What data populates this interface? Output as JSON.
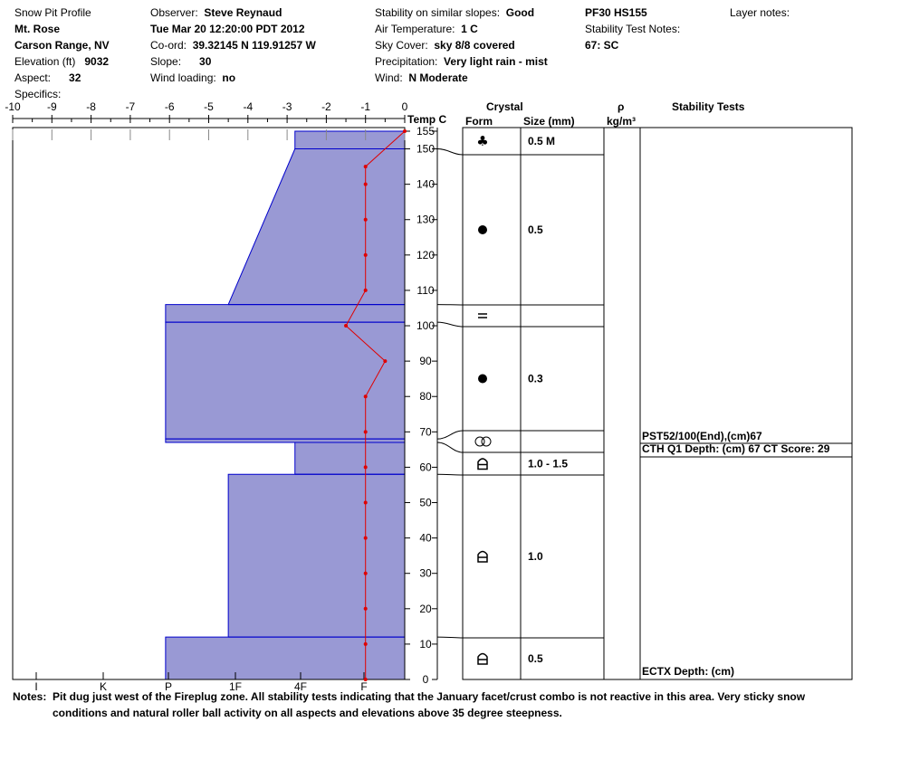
{
  "header": {
    "title": "Snow Pit Profile",
    "location": "Mt. Rose",
    "region": "Carson Range, NV",
    "elevation_label": "Elevation (ft)",
    "elevation_value": "9032",
    "aspect_label": "Aspect:",
    "aspect_value": "32",
    "specifics_label": "Specifics:",
    "observer_label": "Observer:",
    "observer_value": "Steve Reynaud",
    "datetime": "Tue Mar 20 12:20:00 PDT 2012",
    "coord_label": "Co-ord:",
    "coord_value": "39.32145 N 119.91257 W",
    "slope_label": "Slope:",
    "slope_value": "30",
    "wind_loading_label": "Wind loading:",
    "wind_loading_value": "no",
    "stability_label": "Stability on similar slopes:",
    "stability_value": "Good",
    "air_temp_label": "Air Temperature:",
    "air_temp_value": "1 C",
    "sky_label": "Sky Cover:",
    "sky_value": "sky 8/8 covered",
    "precip_label": "Precipitation:",
    "precip_value": "Very light rain - mist",
    "wind_label": "Wind:",
    "wind_value": "N Moderate",
    "pf_hs": "PF30 HS155",
    "stability_notes_label": "Stability Test Notes:",
    "stability_notes_value": "67: SC",
    "layer_notes_label": "Layer notes:"
  },
  "columns": {
    "temp": "Temp C",
    "crystal": "Crystal",
    "form": "Form",
    "size": "Size (mm)",
    "rho": "ρ",
    "density_unit": "kg/m³",
    "stability_tests": "Stability Tests"
  },
  "chart_data": {
    "type": "snow-profile",
    "temp_axis": {
      "ticks": [
        "-10",
        "-9",
        "-8",
        "-7",
        "-6",
        "-5",
        "-4",
        "-3",
        "-2",
        "-1",
        "0"
      ],
      "range": [
        -10,
        0
      ]
    },
    "depth_axis": {
      "ticks": [
        "0",
        "10",
        "20",
        "30",
        "40",
        "50",
        "60",
        "70",
        "80",
        "90",
        "100",
        "110",
        "120",
        "130",
        "140",
        "150",
        "155"
      ],
      "range": [
        0,
        155
      ]
    },
    "hardness_axis": {
      "ticks": [
        "I",
        "K",
        "P",
        "1F",
        "4F",
        "F"
      ]
    },
    "hardness_profile": [
      {
        "bottom": 150,
        "top": 155,
        "hardness_c": -2.8,
        "hardness_c_top": -2.8
      },
      {
        "bottom": 106,
        "top": 150,
        "hardness_c": -4.5,
        "hardness_c_top": -2.8
      },
      {
        "bottom": 101,
        "top": 106,
        "hardness_c": -6.1
      },
      {
        "bottom": 68,
        "top": 101,
        "hardness_c": -6.1
      },
      {
        "bottom": 67,
        "top": 68,
        "hardness_c": -6.1
      },
      {
        "bottom": 58,
        "top": 67,
        "hardness_c": -2.8
      },
      {
        "bottom": 12,
        "top": 58,
        "hardness_c": -4.5
      },
      {
        "bottom": 0,
        "top": 12,
        "hardness_c": -6.1
      }
    ],
    "temperature_profile": [
      {
        "depth": 155,
        "temp": 0
      },
      {
        "depth": 145,
        "temp": -1
      },
      {
        "depth": 140,
        "temp": -1
      },
      {
        "depth": 130,
        "temp": -1
      },
      {
        "depth": 120,
        "temp": -1
      },
      {
        "depth": 110,
        "temp": -1
      },
      {
        "depth": 100,
        "temp": -1.5
      },
      {
        "depth": 90,
        "temp": -0.5
      },
      {
        "depth": 80,
        "temp": -1
      },
      {
        "depth": 70,
        "temp": -1
      },
      {
        "depth": 60,
        "temp": -1
      },
      {
        "depth": 50,
        "temp": -1
      },
      {
        "depth": 40,
        "temp": -1
      },
      {
        "depth": 30,
        "temp": -1
      },
      {
        "depth": 20,
        "temp": -1
      },
      {
        "depth": 10,
        "temp": -1
      },
      {
        "depth": 0,
        "temp": -1
      }
    ],
    "crystal_layers": [
      {
        "bottom": 150,
        "top": 155,
        "form": "precip-particles",
        "size": "0.5 M"
      },
      {
        "bottom": 106,
        "top": 150,
        "form": "rounded-grains",
        "size": "0.5"
      },
      {
        "bottom": 101,
        "top": 106,
        "form": "ice-layer",
        "size": ""
      },
      {
        "bottom": 68,
        "top": 101,
        "form": "rounded-grains",
        "size": "0.3"
      },
      {
        "bottom": 67,
        "top": 68,
        "form": "melt-forms",
        "size": ""
      },
      {
        "bottom": 58,
        "top": 67,
        "form": "depth-hoar",
        "size": "1.0 - 1.5"
      },
      {
        "bottom": 12,
        "top": 58,
        "form": "depth-hoar",
        "size": "1.0"
      },
      {
        "bottom": 0,
        "top": 12,
        "form": "depth-hoar",
        "size": "0.5"
      }
    ],
    "stability_tests": [
      {
        "depth": 67,
        "text": "PST52/100(End),(cm)67"
      },
      {
        "depth": 67,
        "text": "CTH Q1 Depth: (cm) 67 CT Score: 29"
      },
      {
        "depth": 0,
        "text": "ECTX  Depth: (cm)"
      }
    ]
  },
  "notes": {
    "label": "Notes:",
    "line1": "Pit dug just west of the Fireplug zone.  All stability tests indicating that the January facet/crust combo is not reactive in this area.  Very sticky snow",
    "line2": "conditions and natural roller ball activity on all aspects and elevations above 35 degree steepness."
  },
  "colors": {
    "layer_fill": "#9999d4",
    "layer_line": "#0000cc",
    "temp_line": "#e00000"
  }
}
